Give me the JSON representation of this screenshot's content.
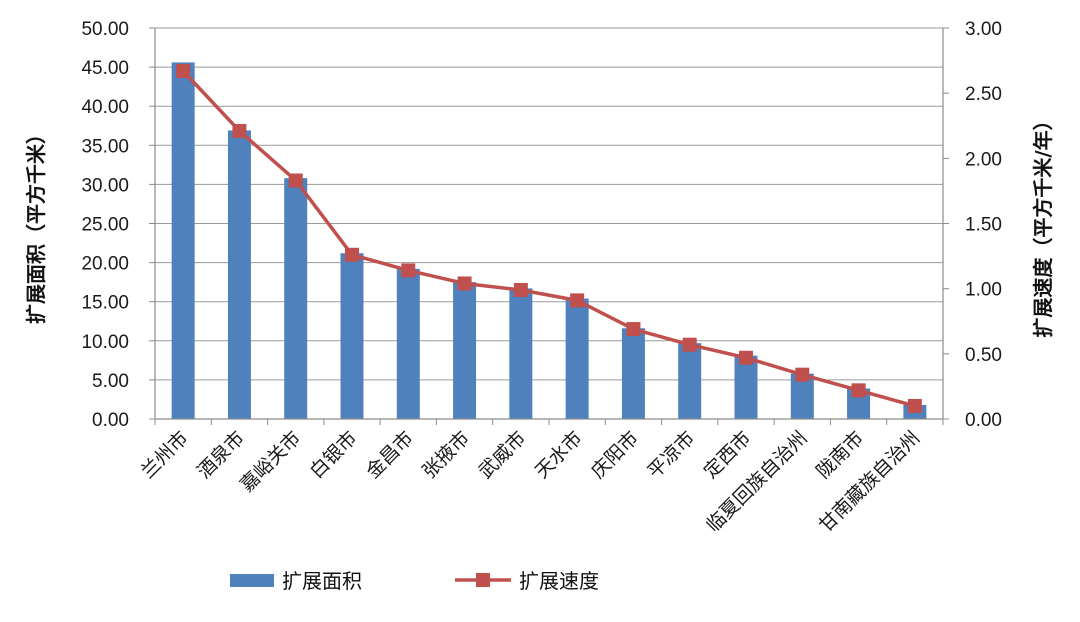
{
  "chart_data": {
    "type": "bar+line",
    "categories": [
      "兰州市",
      "酒泉市",
      "嘉峪关市",
      "白银市",
      "金昌市",
      "张掖市",
      "武威市",
      "天水市",
      "庆阳市",
      "平凉市",
      "定西市",
      "临夏回族自治州",
      "陇南市",
      "甘南藏族自治州"
    ],
    "series": [
      {
        "name": "扩展面积",
        "type": "bar",
        "axis": "left",
        "color": "#4F81BD",
        "values": [
          45.6,
          36.9,
          30.8,
          21.2,
          19.2,
          17.5,
          16.7,
          15.4,
          11.6,
          9.7,
          8.1,
          5.8,
          3.9,
          1.8
        ]
      },
      {
        "name": "扩展速度",
        "type": "line",
        "axis": "right",
        "color": "#C0504D",
        "values": [
          2.67,
          2.21,
          1.83,
          1.26,
          1.14,
          1.04,
          0.99,
          0.91,
          0.69,
          0.57,
          0.47,
          0.34,
          0.22,
          0.1
        ]
      }
    ],
    "y_left": {
      "label": "扩展面积（平方千米）",
      "range": [
        0,
        50
      ],
      "ticks": [
        "0.00",
        "5.00",
        "10.00",
        "15.00",
        "20.00",
        "25.00",
        "30.00",
        "35.00",
        "40.00",
        "45.00",
        "50.00"
      ]
    },
    "y_right": {
      "label": "扩展速度（平方千米/年）",
      "range": [
        0,
        3
      ],
      "ticks": [
        "0.00",
        "0.50",
        "1.00",
        "1.50",
        "2.00",
        "2.50",
        "3.00"
      ]
    },
    "grid": true,
    "legend_position": "bottom-left"
  }
}
